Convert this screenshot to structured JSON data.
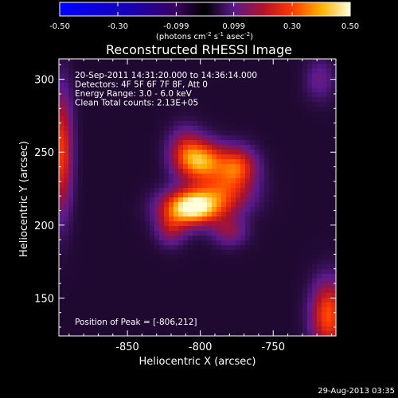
{
  "chart_data": {
    "type": "heatmap",
    "title": "Reconstructed RHESSI Image",
    "xlabel": "Heliocentric X (arcsec)",
    "ylabel": "Heliocentric Y (arcsec)",
    "xlim": [
      -897,
      -707
    ],
    "ylim": [
      124,
      314
    ],
    "x_ticks": [
      {
        "value": -850,
        "label": "-850"
      },
      {
        "value": -800,
        "label": "-800"
      },
      {
        "value": -750,
        "label": "-750"
      }
    ],
    "y_ticks": [
      {
        "value": 150,
        "label": "150"
      },
      {
        "value": 200,
        "label": "200"
      },
      {
        "value": 250,
        "label": "250"
      },
      {
        "value": 300,
        "label": "300"
      }
    ],
    "colorbar": {
      "range": [
        -0.5,
        0.5
      ],
      "tick_labels": [
        {
          "value": -0.5,
          "label": "-0.50"
        },
        {
          "value": -0.3,
          "label": "-0.30"
        },
        {
          "value": -0.099,
          "label": "-0.099"
        },
        {
          "value": 0.099,
          "label": "0.099"
        },
        {
          "value": 0.3,
          "label": "0.30"
        },
        {
          "value": 0.5,
          "label": "0.50"
        }
      ],
      "unit_prefix": "(photons cm",
      "unit_exp1": "-2",
      "unit_mid": " s",
      "unit_exp2": "-1",
      "unit_mid2": " asec",
      "unit_exp3": "-2",
      "unit_suffix": ")"
    },
    "annotations": [
      "20-Sep-2011 14:31:20.000 to 14:36:14.000",
      "Detectors: 4F 5F 6F 7F 8F, Att 0",
      "Energy Range: 3.0 - 6.0 keV",
      "Clean     Total counts: 2.13E+05"
    ],
    "peak_label": "Position of Peak = [-806,212]",
    "peak": {
      "x": -806,
      "y": 212
    },
    "sources": [
      {
        "x": -806,
        "y": 212,
        "sx": 13,
        "sy": 8,
        "amp": 0.48
      },
      {
        "x": -785,
        "y": 222,
        "sx": 14,
        "sy": 10,
        "amp": 0.22
      },
      {
        "x": -798,
        "y": 244,
        "sx": 10,
        "sy": 9,
        "amp": 0.32
      },
      {
        "x": -775,
        "y": 240,
        "sx": 9,
        "sy": 9,
        "amp": 0.26
      },
      {
        "x": -810,
        "y": 250,
        "sx": 8,
        "sy": 11,
        "amp": 0.18
      },
      {
        "x": -820,
        "y": 198,
        "sx": 7,
        "sy": 8,
        "amp": 0.14
      },
      {
        "x": -780,
        "y": 196,
        "sx": 8,
        "sy": 7,
        "amp": 0.12
      },
      {
        "x": -895,
        "y": 250,
        "sx": 5,
        "sy": 28,
        "amp": 0.25
      },
      {
        "x": -712,
        "y": 138,
        "sx": 8,
        "sy": 16,
        "amp": 0.28
      },
      {
        "x": -718,
        "y": 300,
        "sx": 7,
        "sy": 10,
        "amp": 0.08
      }
    ],
    "background": 0.035
  },
  "footer": {
    "timestamp": "29-Aug-2013 03:35"
  }
}
